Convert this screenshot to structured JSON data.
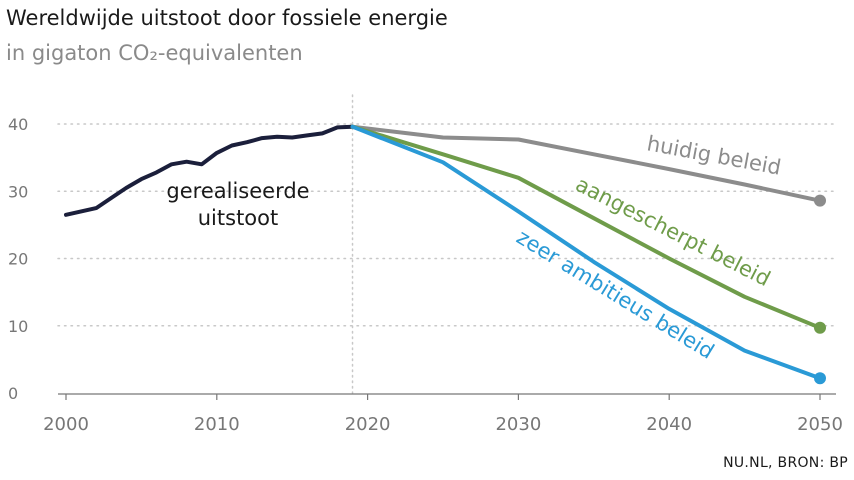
{
  "chart_data": {
    "type": "line",
    "title": "Wereldwijde uitstoot door fossiele energie",
    "subtitle": "in gigaton CO₂-equivalenten",
    "source": "NU.NL, BRON: BP",
    "xlim": [
      2000,
      2050
    ],
    "ylim": [
      0,
      40
    ],
    "x_ticks": [
      2000,
      2010,
      2020,
      2030,
      2040,
      2050
    ],
    "y_ticks": [
      0,
      10,
      20,
      30,
      40
    ],
    "grid": "horizontal dotted",
    "series": [
      {
        "name": "gerealiseerde uitstoot",
        "label_lines": [
          "gerealiseerde",
          "uitstoot"
        ],
        "color": "#1b1f3b",
        "end_marker": false,
        "x": [
          2000,
          2001,
          2002,
          2003,
          2004,
          2005,
          2006,
          2007,
          2008,
          2009,
          2010,
          2011,
          2012,
          2013,
          2014,
          2015,
          2016,
          2017,
          2018,
          2019
        ],
        "y": [
          26.5,
          27.0,
          27.5,
          29.0,
          30.5,
          31.8,
          32.8,
          34.0,
          34.4,
          34.0,
          35.7,
          36.8,
          37.3,
          37.9,
          38.1,
          38.0,
          38.3,
          38.6,
          39.5,
          39.6
        ]
      },
      {
        "name": "huidig beleid",
        "color": "#8c8c8c",
        "end_marker": true,
        "x": [
          2019,
          2025,
          2030,
          2035,
          2040,
          2045,
          2050
        ],
        "y": [
          39.6,
          38.0,
          37.7,
          35.5,
          33.3,
          31.0,
          28.6
        ]
      },
      {
        "name": "aangescherpt beleid",
        "color": "#6f9c4a",
        "end_marker": true,
        "x": [
          2019,
          2025,
          2030,
          2035,
          2040,
          2045,
          2050
        ],
        "y": [
          39.6,
          35.5,
          32.0,
          26.0,
          20.0,
          14.3,
          9.7
        ]
      },
      {
        "name": "zeer ambitieus beleid",
        "color": "#2a9ad6",
        "end_marker": true,
        "x": [
          2019,
          2025,
          2030,
          2035,
          2040,
          2045,
          2050
        ],
        "y": [
          39.6,
          34.3,
          27.0,
          19.5,
          12.5,
          6.3,
          2.2
        ]
      }
    ]
  }
}
